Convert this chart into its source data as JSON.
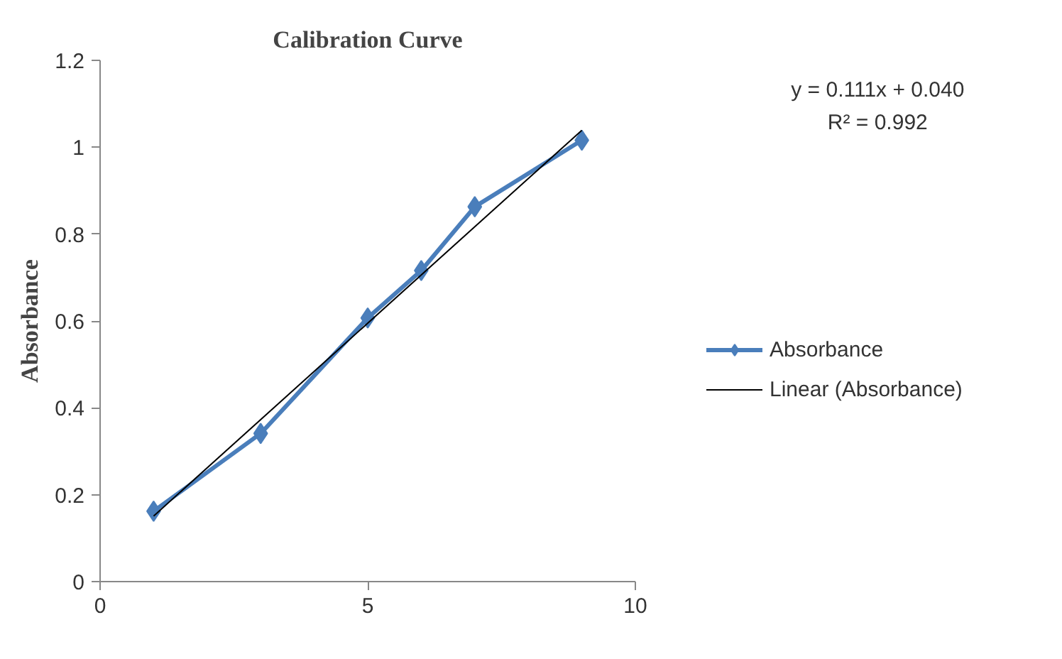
{
  "chart_data": {
    "type": "line",
    "title": "Calibration Curve",
    "ylabel": "Absorbance",
    "x": [
      1,
      3,
      5,
      6,
      7,
      9
    ],
    "series": [
      {
        "name": "Absorbance",
        "color": "#4a7ebb",
        "values": [
          0.162,
          0.341,
          0.607,
          0.716,
          0.863,
          1.016
        ],
        "marker": "diamond"
      },
      {
        "name": "Linear (Absorbance)",
        "color": "#000000",
        "x": [
          1,
          9
        ],
        "values": [
          0.151,
          1.039
        ],
        "marker": "none"
      }
    ],
    "annotations": [
      "y = 0.111x + 0.040",
      "R² = 0.992"
    ],
    "xlim": [
      0,
      10
    ],
    "xticks": [
      0,
      5,
      10
    ],
    "ylim": [
      0,
      1.2
    ],
    "yticks": [
      0,
      0.2,
      0.4,
      0.6,
      0.8,
      1,
      1.2
    ],
    "grid": false,
    "legend": "right"
  }
}
